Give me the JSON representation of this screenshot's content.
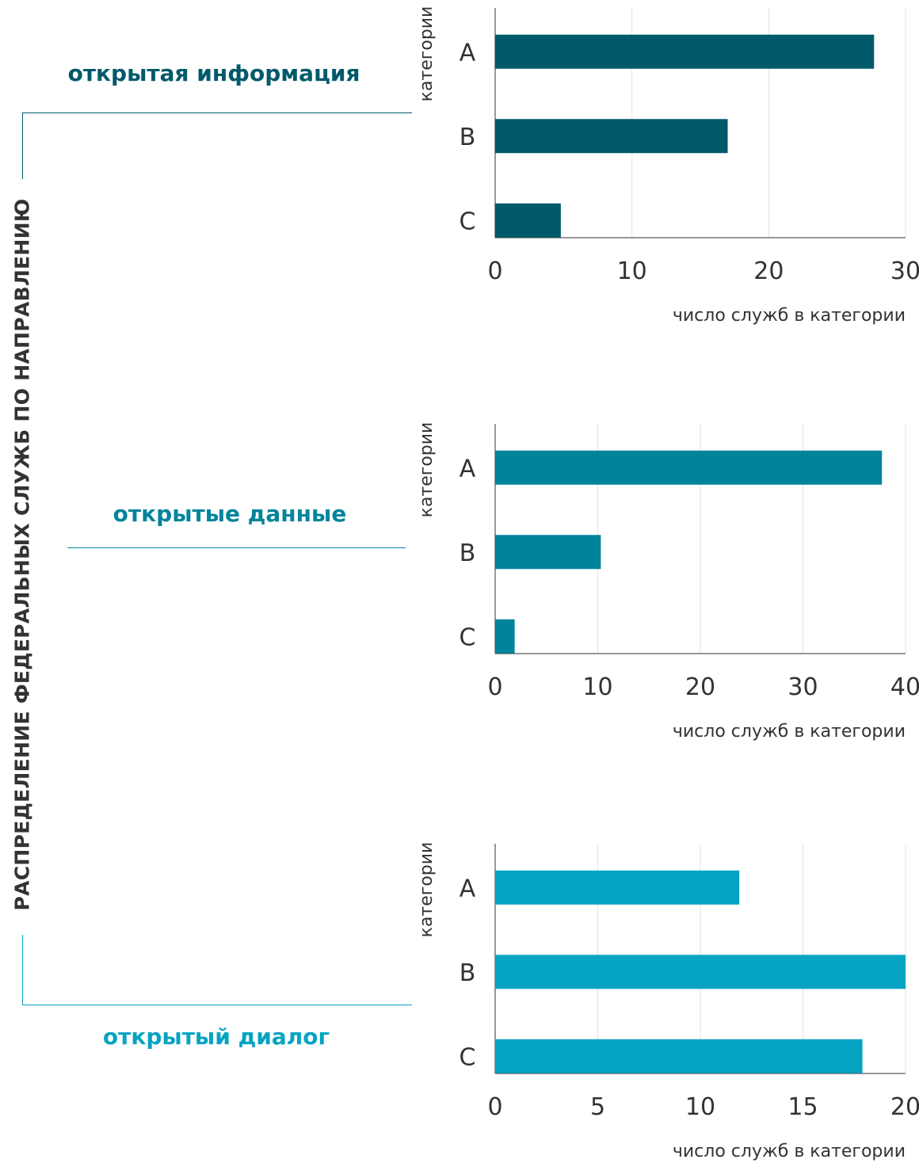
{
  "page_title": "РАСПРЕДЕЛЕНИЕ ФЕДЕРАЛЬНЫХ СЛУЖБ ПО НАПРАВЛЕНИЮ",
  "sections": [
    {
      "label": "открытая информация",
      "color": "#005a6a"
    },
    {
      "label": "открытые данные",
      "color": "#00849b"
    },
    {
      "label": "открытый диалог",
      "color": "#05a4c2"
    }
  ],
  "chart_data": [
    {
      "type": "bar",
      "orientation": "horizontal",
      "categories": [
        "A",
        "B",
        "C"
      ],
      "values": [
        27.7,
        17,
        4.8
      ],
      "xlabel": "число служб в категории",
      "ylabel": "категории",
      "xlim": [
        0,
        30
      ],
      "xticks": [
        "0",
        "10",
        "20",
        "30"
      ],
      "grid": true,
      "color": "#005a6a"
    },
    {
      "type": "bar",
      "orientation": "horizontal",
      "categories": [
        "A",
        "B",
        "C"
      ],
      "values": [
        37.7,
        10.3,
        1.9
      ],
      "xlabel": "число служб в категории",
      "ylabel": "категории",
      "xlim": [
        0,
        40
      ],
      "xticks": [
        "0",
        "10",
        "20",
        "30",
        "40"
      ],
      "grid": true,
      "color": "#00849b"
    },
    {
      "type": "bar",
      "orientation": "horizontal",
      "categories": [
        "A",
        "B",
        "C"
      ],
      "values": [
        11.9,
        20,
        17.9
      ],
      "xlabel": "число служб в категории",
      "ylabel": "категории",
      "xlim": [
        0,
        20
      ],
      "xticks": [
        "0",
        "5",
        "10",
        "15",
        "20"
      ],
      "grid": true,
      "color": "#05a4c2"
    }
  ]
}
